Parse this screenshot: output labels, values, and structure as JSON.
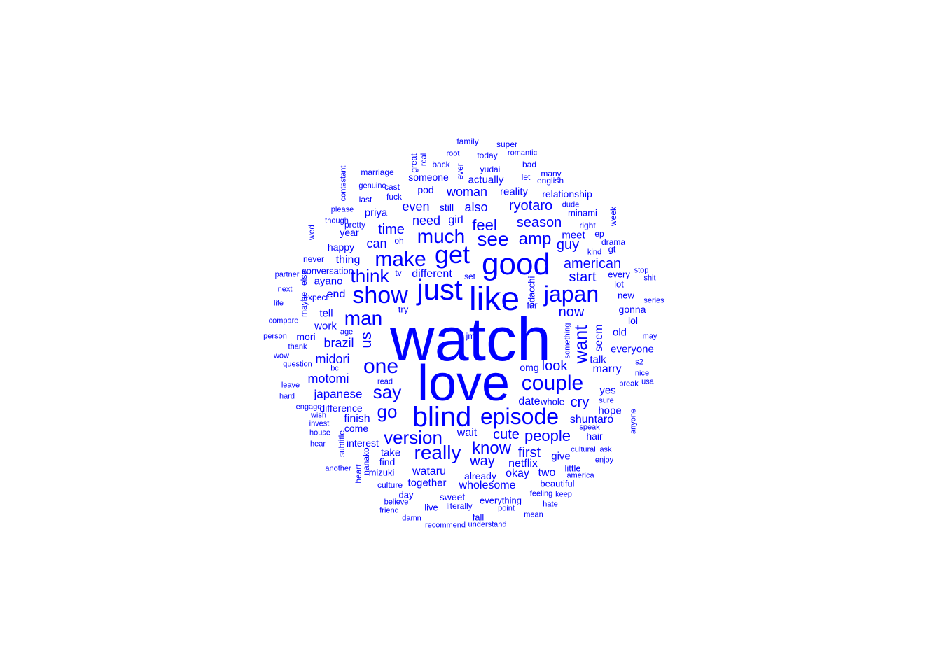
{
  "color": "#0000ff",
  "words": [
    {
      "text": "watch"
    },
    {
      "text": "love"
    },
    {
      "text": "good"
    },
    {
      "text": "like"
    },
    {
      "text": "just"
    },
    {
      "text": "get"
    },
    {
      "text": "blind"
    },
    {
      "text": "show"
    },
    {
      "text": "episode"
    },
    {
      "text": "japan"
    },
    {
      "text": "make"
    },
    {
      "text": "couple"
    },
    {
      "text": "one"
    },
    {
      "text": "much"
    },
    {
      "text": "see"
    },
    {
      "text": "man"
    },
    {
      "text": "version"
    },
    {
      "text": "really"
    },
    {
      "text": "think"
    },
    {
      "text": "say"
    },
    {
      "text": "go"
    },
    {
      "text": "us"
    },
    {
      "text": "want"
    },
    {
      "text": "know"
    },
    {
      "text": "amp"
    },
    {
      "text": "people"
    },
    {
      "text": "feel"
    },
    {
      "text": "season"
    },
    {
      "text": "ryotaro"
    },
    {
      "text": "american"
    },
    {
      "text": "start"
    },
    {
      "text": "now"
    },
    {
      "text": "time"
    },
    {
      "text": "cute"
    },
    {
      "text": "guy"
    },
    {
      "text": "first"
    },
    {
      "text": "way"
    },
    {
      "text": "look"
    },
    {
      "text": "brazil"
    },
    {
      "text": "midori"
    },
    {
      "text": "cry"
    },
    {
      "text": "even"
    },
    {
      "text": "also"
    },
    {
      "text": "woman"
    },
    {
      "text": "need"
    },
    {
      "text": "can"
    },
    {
      "text": "motomi"
    },
    {
      "text": "japanese"
    },
    {
      "text": "marry"
    },
    {
      "text": "shuntaro"
    },
    {
      "text": "wataru"
    },
    {
      "text": "netflix"
    },
    {
      "text": "date"
    },
    {
      "text": "finish"
    },
    {
      "text": "wait"
    },
    {
      "text": "two"
    },
    {
      "text": "okay"
    },
    {
      "text": "seem"
    },
    {
      "text": "girl"
    },
    {
      "text": "end"
    },
    {
      "text": "thing"
    },
    {
      "text": "together"
    },
    {
      "text": "wholesome"
    },
    {
      "text": "everyone"
    },
    {
      "text": "different"
    },
    {
      "text": "tell"
    },
    {
      "text": "work"
    },
    {
      "text": "priya"
    },
    {
      "text": "actually"
    },
    {
      "text": "reality"
    },
    {
      "text": "relationship"
    },
    {
      "text": "someone"
    },
    {
      "text": "pod"
    },
    {
      "text": "still"
    },
    {
      "text": "ayano"
    },
    {
      "text": "happy"
    },
    {
      "text": "year"
    },
    {
      "text": "meet"
    },
    {
      "text": "talk"
    },
    {
      "text": "old"
    },
    {
      "text": "yes"
    },
    {
      "text": "give"
    },
    {
      "text": "hope"
    },
    {
      "text": "hair"
    },
    {
      "text": "already"
    },
    {
      "text": "sweet"
    },
    {
      "text": "beautiful"
    },
    {
      "text": "everything"
    },
    {
      "text": "difference"
    },
    {
      "text": "interest"
    },
    {
      "text": "take"
    },
    {
      "text": "find"
    },
    {
      "text": "come"
    },
    {
      "text": "omg"
    },
    {
      "text": "lol"
    },
    {
      "text": "gonna"
    },
    {
      "text": "new"
    },
    {
      "text": "every"
    },
    {
      "text": "lot"
    },
    {
      "text": "right"
    },
    {
      "text": "minami"
    },
    {
      "text": "drama"
    },
    {
      "text": "odacchi"
    },
    {
      "text": "far"
    },
    {
      "text": "try"
    },
    {
      "text": "mori"
    },
    {
      "text": "little"
    },
    {
      "text": "mizuki"
    },
    {
      "text": "day"
    },
    {
      "text": "culture"
    },
    {
      "text": "live"
    },
    {
      "text": "literally"
    },
    {
      "text": "fall"
    },
    {
      "text": "conversation"
    },
    {
      "text": "never"
    },
    {
      "text": "pretty"
    },
    {
      "text": "oh"
    },
    {
      "text": "tv"
    },
    {
      "text": "set"
    },
    {
      "text": "gt"
    },
    {
      "text": "ep"
    },
    {
      "text": "kind"
    },
    {
      "text": "dude"
    },
    {
      "text": "week"
    },
    {
      "text": "english"
    },
    {
      "text": "many"
    },
    {
      "text": "let"
    },
    {
      "text": "bad"
    },
    {
      "text": "yudai"
    },
    {
      "text": "ever"
    },
    {
      "text": "back"
    },
    {
      "text": "real"
    },
    {
      "text": "great"
    },
    {
      "text": "root"
    },
    {
      "text": "today"
    },
    {
      "text": "romantic"
    },
    {
      "text": "family"
    },
    {
      "text": "super"
    },
    {
      "text": "marriage"
    },
    {
      "text": "contestant"
    },
    {
      "text": "genuine"
    },
    {
      "text": "cast"
    },
    {
      "text": "fuck"
    },
    {
      "text": "last"
    },
    {
      "text": "please"
    },
    {
      "text": "though"
    },
    {
      "text": "wed"
    },
    {
      "text": "partner"
    },
    {
      "text": "else"
    },
    {
      "text": "maybe"
    },
    {
      "text": "next"
    },
    {
      "text": "expect"
    },
    {
      "text": "life"
    },
    {
      "text": "compare"
    },
    {
      "text": "person"
    },
    {
      "text": "thank"
    },
    {
      "text": "wow"
    },
    {
      "text": "question"
    },
    {
      "text": "age"
    },
    {
      "text": "bc"
    },
    {
      "text": "read"
    },
    {
      "text": "leave"
    },
    {
      "text": "hard"
    },
    {
      "text": "engage"
    },
    {
      "text": "wish"
    },
    {
      "text": "invest"
    },
    {
      "text": "house"
    },
    {
      "text": "hear"
    },
    {
      "text": "subtitle"
    },
    {
      "text": "nanako"
    },
    {
      "text": "heart"
    },
    {
      "text": "another"
    },
    {
      "text": "believe"
    },
    {
      "text": "friend"
    },
    {
      "text": "damn"
    },
    {
      "text": "recommend"
    },
    {
      "text": "understand"
    },
    {
      "text": "point"
    },
    {
      "text": "mean"
    },
    {
      "text": "feeling"
    },
    {
      "text": "keep"
    },
    {
      "text": "hate"
    },
    {
      "text": "america"
    },
    {
      "text": "cultural"
    },
    {
      "text": "ask"
    },
    {
      "text": "enjoy"
    },
    {
      "text": "speak"
    },
    {
      "text": "sure"
    },
    {
      "text": "break"
    },
    {
      "text": "usa"
    },
    {
      "text": "nice"
    },
    {
      "text": "s2"
    },
    {
      "text": "may"
    },
    {
      "text": "series"
    },
    {
      "text": "stop"
    },
    {
      "text": "shit"
    },
    {
      "text": "anyone"
    },
    {
      "text": "something"
    },
    {
      "text": "whole"
    },
    {
      "text": "jm"
    }
  ]
}
